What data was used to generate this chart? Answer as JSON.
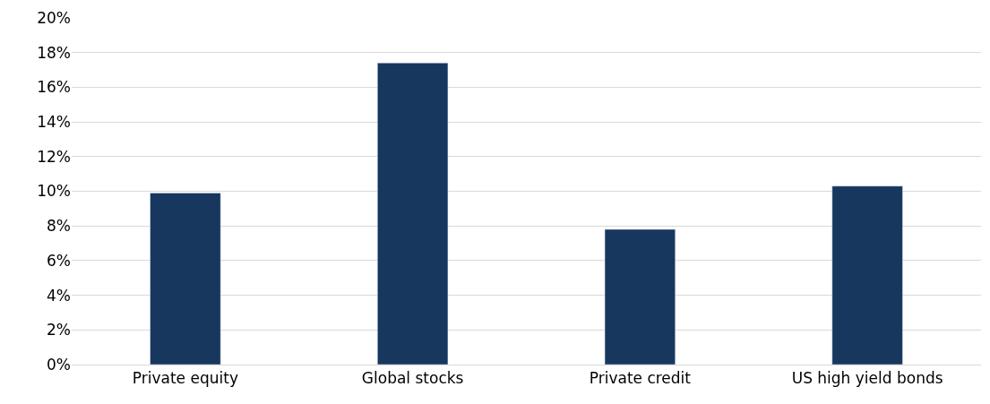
{
  "chart_data": {
    "type": "bar",
    "categories": [
      "Private equity",
      "Global stocks",
      "Private credit",
      "US high yield bonds"
    ],
    "values": [
      9.9,
      17.4,
      7.8,
      10.3
    ],
    "color": "#17375e",
    "ylim": [
      0,
      20
    ],
    "yticks": [
      {
        "value": 0,
        "label": "0%"
      },
      {
        "value": 2,
        "label": "2%"
      },
      {
        "value": 4,
        "label": "4%"
      },
      {
        "value": 6,
        "label": "6%"
      },
      {
        "value": 8,
        "label": "8%"
      },
      {
        "value": 10,
        "label": "10%"
      },
      {
        "value": 12,
        "label": "12%"
      },
      {
        "value": 14,
        "label": "14%"
      },
      {
        "value": 16,
        "label": "16%"
      },
      {
        "value": 18,
        "label": "18%"
      },
      {
        "value": 20,
        "label": "20%"
      }
    ],
    "grid": "y"
  }
}
